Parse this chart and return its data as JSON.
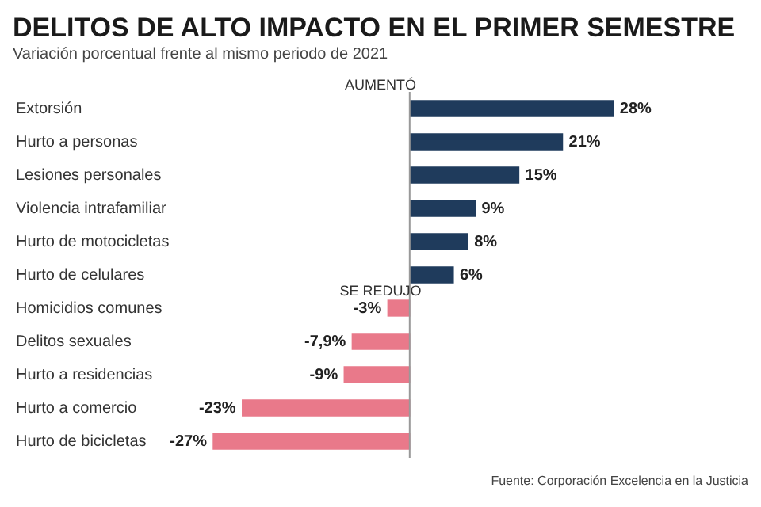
{
  "chart_data": {
    "type": "bar",
    "orientation": "horizontal",
    "title": "DELITOS DE ALTO IMPACTO EN EL PRIMER SEMESTRE",
    "subtitle": "Variación porcentual frente al mismo periodo de 2021",
    "categories": [
      "Extorsión",
      "Hurto a personas",
      "Lesiones personales",
      "Violencia intrafamiliar",
      "Hurto de motocicletas",
      "Hurto de celulares",
      "Homicidios comunes",
      "Delitos sexuales",
      "Hurto a residencias",
      "Hurto a comercio",
      "Hurto de bicicletas"
    ],
    "values": [
      28,
      21,
      15,
      9,
      8,
      6,
      -3,
      -7.9,
      -9,
      -23,
      -27
    ],
    "value_labels": [
      "28%",
      "21%",
      "15%",
      "9%",
      "8%",
      "6%",
      "-3%",
      "-7,9%",
      "-9%",
      "-23%",
      "-27%"
    ],
    "colors": [
      "#1f3b5c",
      "#1f3b5c",
      "#1f3b5c",
      "#1f3b5c",
      "#1f3b5c",
      "#1f3b5c",
      "#e9798a",
      "#e9798a",
      "#e9798a",
      "#e9798a",
      "#e9798a"
    ],
    "annotations": [
      "AUMENTÓ",
      "SE REDUJO",
      "Fuente: Corporación Excelencia en la Justicia"
    ],
    "legend": false,
    "tick_labels": "y"
  }
}
